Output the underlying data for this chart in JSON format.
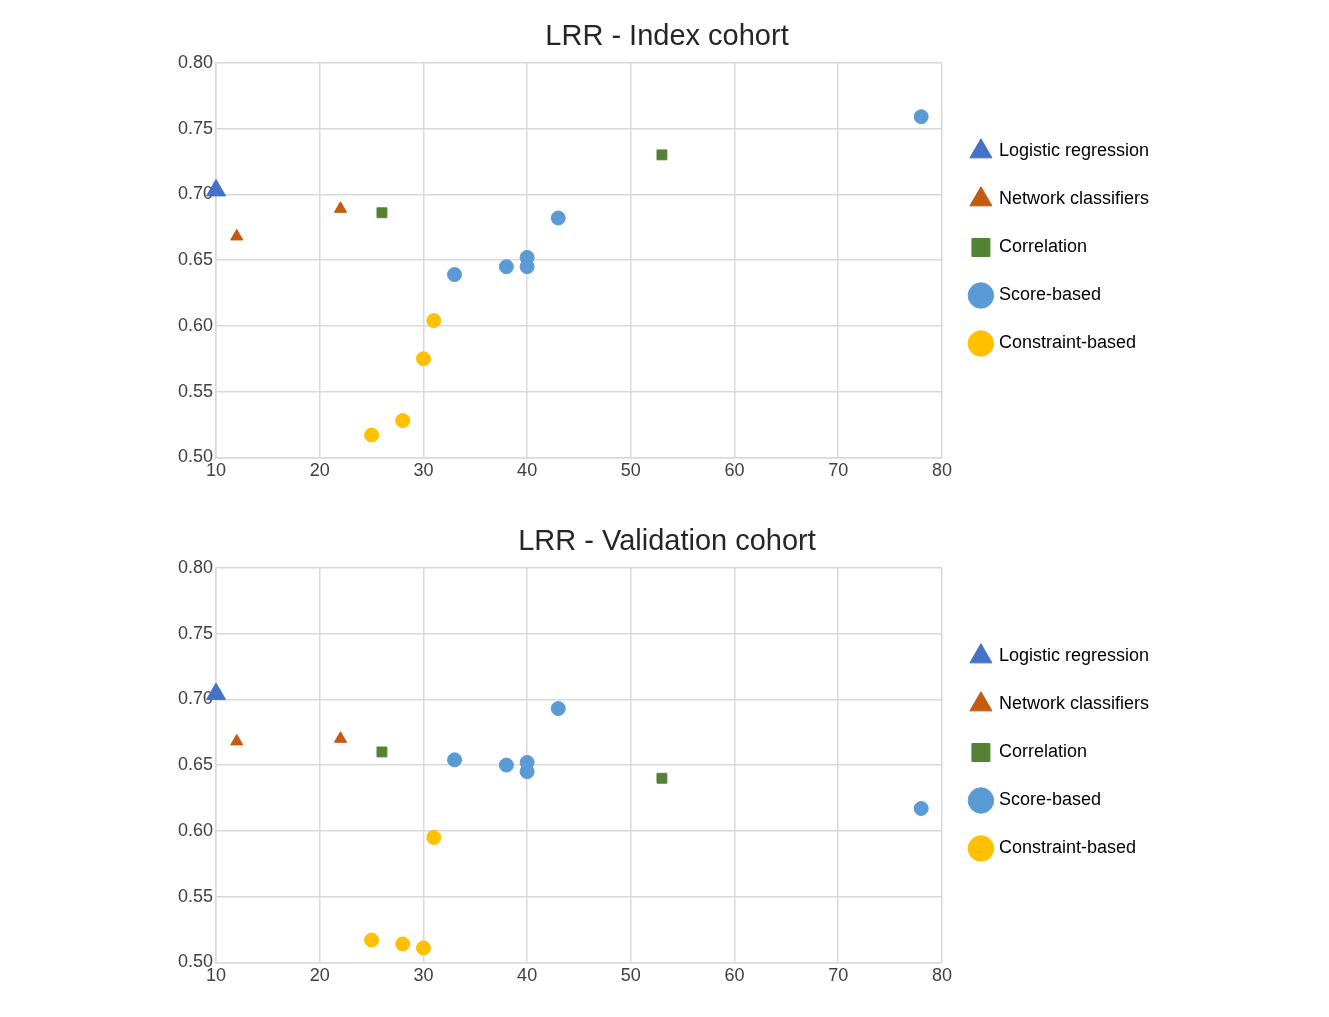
{
  "chart_data": [
    {
      "type": "scatter",
      "title": "LRR - Index cohort",
      "xlim": [
        10,
        80
      ],
      "xticks": [
        10,
        20,
        30,
        40,
        50,
        60,
        70,
        80
      ],
      "ylim": [
        0.5,
        0.8
      ],
      "yticks": [
        {
          "value": 0.5,
          "label": "0.50"
        },
        {
          "value": 0.55,
          "label": "0.55"
        },
        {
          "value": 0.6,
          "label": "0.60"
        },
        {
          "value": 0.65,
          "label": "0.65"
        },
        {
          "value": 0.7,
          "label": "0.70"
        },
        {
          "value": 0.75,
          "label": "0.75"
        },
        {
          "value": 0.8,
          "label": "0.80"
        }
      ],
      "grid": true,
      "legend": "right",
      "series": [
        {
          "name": "Logistic regression",
          "color": "#4472c4",
          "marker": "triangle",
          "x": [
            10
          ],
          "values": [
            0.703
          ]
        },
        {
          "name": "Network classifiers",
          "color": "#c55a11",
          "marker": "triangle",
          "x": [
            12,
            22
          ],
          "values": [
            0.668,
            0.689
          ]
        },
        {
          "name": "Correlation",
          "color": "#548235",
          "marker": "square",
          "x": [
            26,
            53
          ],
          "values": [
            0.686,
            0.73
          ]
        },
        {
          "name": "Score-based",
          "color": "#5b9bd5",
          "marker": "circle",
          "x": [
            33,
            38,
            40,
            40,
            43,
            78
          ],
          "values": [
            0.639,
            0.645,
            0.652,
            0.645,
            0.682,
            0.759
          ]
        },
        {
          "name": "Constraint-based",
          "color": "#ffc000",
          "marker": "circle",
          "x": [
            25,
            28,
            30,
            31
          ],
          "values": [
            0.517,
            0.528,
            0.575,
            0.604
          ]
        }
      ]
    },
    {
      "type": "scatter",
      "title": "LRR - Validation cohort",
      "xlim": [
        10,
        80
      ],
      "xticks": [
        10,
        20,
        30,
        40,
        50,
        60,
        70,
        80
      ],
      "ylim": [
        0.5,
        0.8
      ],
      "yticks": [
        {
          "value": 0.5,
          "label": "0.50"
        },
        {
          "value": 0.55,
          "label": "0.55"
        },
        {
          "value": 0.6,
          "label": "0.60"
        },
        {
          "value": 0.65,
          "label": "0.65"
        },
        {
          "value": 0.7,
          "label": "0.70"
        },
        {
          "value": 0.75,
          "label": "0.75"
        },
        {
          "value": 0.8,
          "label": "0.80"
        }
      ],
      "grid": true,
      "legend": "right",
      "series": [
        {
          "name": "Logistic regression",
          "color": "#4472c4",
          "marker": "triangle",
          "x": [
            10
          ],
          "values": [
            0.704
          ]
        },
        {
          "name": "Network classifiers",
          "color": "#c55a11",
          "marker": "triangle",
          "x": [
            12,
            22
          ],
          "values": [
            0.668,
            0.67
          ]
        },
        {
          "name": "Correlation",
          "color": "#548235",
          "marker": "square",
          "x": [
            26,
            53
          ],
          "values": [
            0.66,
            0.64
          ]
        },
        {
          "name": "Score-based",
          "color": "#5b9bd5",
          "marker": "circle",
          "x": [
            33,
            38,
            40,
            40,
            43,
            78
          ],
          "values": [
            0.654,
            0.65,
            0.652,
            0.645,
            0.693,
            0.617
          ]
        },
        {
          "name": "Constraint-based",
          "color": "#ffc000",
          "marker": "circle",
          "x": [
            25,
            28,
            30,
            31
          ],
          "values": [
            0.517,
            0.514,
            0.511,
            0.595
          ]
        }
      ]
    }
  ]
}
